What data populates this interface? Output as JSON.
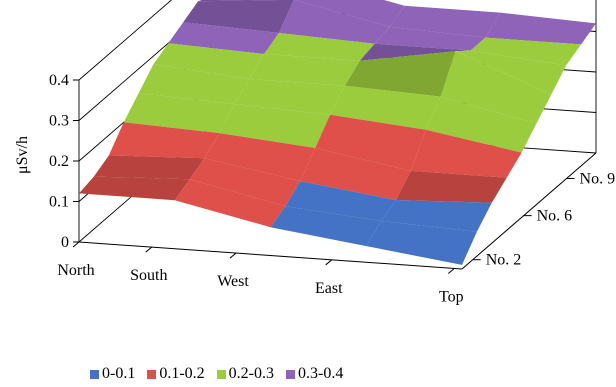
{
  "chart_data": {
    "type": "surface",
    "ylabel": "μSv/h",
    "z_ticks": [
      "0",
      "0.1",
      "0.2",
      "0.3",
      "0.4"
    ],
    "zlim": [
      0,
      0.4
    ],
    "x_categories": [
      "North",
      "South",
      "West",
      "East",
      "Top"
    ],
    "depth_ticks": [
      "No. 2",
      "No. 6",
      "No. 9"
    ],
    "depth_count": 10,
    "grid": true,
    "legend": {
      "position": "bottom",
      "entries": [
        {
          "label": "0-0.1",
          "color": "#4472c4"
        },
        {
          "label": "0.1-0.2",
          "color": "#e0504a"
        },
        {
          "label": "0.2-0.3",
          "color": "#9bcc3d"
        },
        {
          "label": "0.3-0.4",
          "color": "#8e63b8"
        }
      ]
    },
    "rows": [
      {
        "values": [
          0.12,
          0.12,
          0.07,
          0.04,
          0.01
        ]
      },
      {
        "values": [
          0.13,
          0.14,
          0.09,
          0.07,
          0.06
        ]
      },
      {
        "values": [
          0.15,
          0.16,
          0.12,
          0.09,
          0.1
        ]
      },
      {
        "values": [
          0.2,
          0.19,
          0.17,
          0.13,
          0.13
        ]
      },
      {
        "values": [
          0.24,
          0.23,
          0.22,
          0.2,
          0.16
        ]
      },
      {
        "values": [
          0.28,
          0.26,
          0.26,
          0.25,
          0.2
        ]
      },
      {
        "values": [
          0.3,
          0.29,
          0.29,
          0.33,
          0.24
        ]
      },
      {
        "values": [
          0.32,
          0.31,
          0.3,
          0.3,
          0.28
        ]
      },
      {
        "values": [
          0.34,
          0.36,
          0.31,
          0.3,
          0.3
        ]
      },
      {
        "values": [
          0.32,
          0.38,
          0.33,
          0.33,
          0.32
        ]
      }
    ]
  }
}
